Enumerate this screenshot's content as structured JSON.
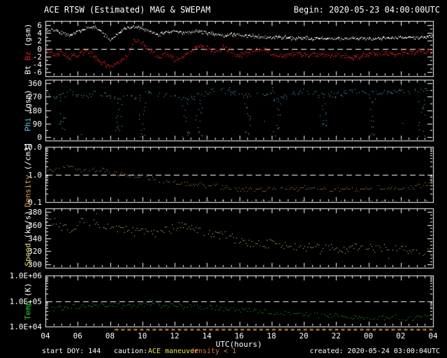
{
  "header": {
    "title": "ACE RTSW (Estimated) MAG & SWEPAM",
    "begin": "Begin: 2020-05-23 04:00:00UTC"
  },
  "footer": {
    "start_doy": "start DOY: 144",
    "caution_label": "caution:",
    "maneuver": "ACE maneuver",
    "maneuver_color": "#e8e34a",
    "density_caution": "density < 1",
    "density_caution_color": "#e0763a",
    "created": "created: 2020-05-24 03:00:04UTC"
  },
  "x_axis": {
    "label": "UTC(hours)",
    "hour_labels": [
      "04",
      "06",
      "08",
      "10",
      "12",
      "14",
      "16",
      "18",
      "20",
      "22",
      "00",
      "02",
      "04"
    ]
  },
  "caution_line": {
    "color": "#dd9b55",
    "segments": [
      [
        8.3,
        28
      ]
    ]
  },
  "chart_data": {
    "type": "scatter",
    "title": "ACE RTSW (Estimated) MAG & SWEPAM",
    "xlabel": "UTC(hours)",
    "x_range_hours": [
      4,
      28
    ],
    "x_hours": [
      4,
      4.5,
      5,
      5.5,
      6,
      6.5,
      7,
      7.5,
      8,
      8.5,
      9,
      9.5,
      10,
      10.5,
      11,
      11.5,
      12,
      12.5,
      13,
      13.5,
      14,
      14.5,
      15,
      15.5,
      16,
      16.5,
      17,
      17.5,
      18,
      18.5,
      19,
      19.5,
      20,
      20.5,
      21,
      21.5,
      22,
      22.5,
      23,
      23.5,
      24,
      24.5,
      25,
      25.5,
      26,
      26.5,
      27,
      27.5,
      28
    ],
    "panels": [
      {
        "name": "bt-bz",
        "label_parts": [
          {
            "text": "Bt ",
            "color": "#ffffff"
          },
          {
            "text": "Bz",
            "color": "#dd2222"
          },
          {
            "text": " (gsm)",
            "color": "#ffffff"
          }
        ],
        "scale": "linear",
        "ylim": [
          -7,
          7
        ],
        "ticks": [
          {
            "value": 6,
            "label": "6"
          },
          {
            "value": 4,
            "label": "4"
          },
          {
            "value": 2,
            "label": "2"
          },
          {
            "value": 0,
            "label": "0"
          },
          {
            "value": -2,
            "label": "-2"
          },
          {
            "value": -4,
            "label": "-4"
          },
          {
            "value": -6,
            "label": "-6"
          }
        ],
        "minor_step": 1,
        "ref_line": 0,
        "series": [
          {
            "name": "bt",
            "color": "#ffffff",
            "values": [
              4.6,
              4.8,
              4.1,
              3.4,
              4.5,
              5.3,
              5.5,
              4.2,
              2.3,
              4.0,
              5.3,
              5.6,
              5.0,
              4.4,
              3.5,
              4.3,
              4.5,
              4.0,
              4.2,
              4.4,
              4.0,
              3.6,
              3.3,
              3.7,
              3.5,
              3.2,
              3.1,
              3.0,
              2.9,
              3.0,
              2.8,
              2.7,
              2.8,
              2.6,
              2.7,
              2.6,
              2.5,
              2.6,
              2.7,
              2.6,
              2.5,
              2.6,
              2.7,
              2.8,
              2.9,
              2.8,
              2.9,
              3.0,
              3.1
            ]
          },
          {
            "name": "bz",
            "color": "#dd2222",
            "values": [
              -0.3,
              -1.5,
              -0.8,
              -2.5,
              -1.5,
              -0.5,
              -2.0,
              -3.5,
              -4.8,
              -3.6,
              -1.8,
              2.4,
              1.6,
              -0.6,
              -2.2,
              -1.0,
              -2.8,
              -2.0,
              -0.4,
              0.5,
              0.2,
              -0.6,
              0.4,
              -0.8,
              -1.8,
              -1.0,
              -0.3,
              0.2,
              -1.2,
              -1.8,
              -1.5,
              -1.2,
              -1.4,
              -1.5,
              -1.3,
              -1.6,
              -1.4,
              -2.0,
              -2.2,
              -1.8,
              -1.5,
              -1.2,
              -1.0,
              -1.3,
              -1.1,
              -0.9,
              -0.8,
              -0.7,
              -0.6
            ]
          }
        ]
      },
      {
        "name": "phi",
        "label_parts": [
          {
            "text": "Phi",
            "color": "#62c3e6"
          },
          {
            "text": " (gsm)",
            "color": "#ffffff"
          }
        ],
        "scale": "linear",
        "ylim": [
          -25,
          385
        ],
        "ticks": [
          {
            "value": 360,
            "label": "360"
          },
          {
            "value": 270,
            "label": "270"
          },
          {
            "value": 180,
            "label": "180"
          },
          {
            "value": 90,
            "label": "90"
          },
          {
            "value": 0,
            "label": "0"
          }
        ],
        "minor_step": 45,
        "series": [
          {
            "name": "phi",
            "color": "#62c3e6",
            "values": [
              295,
              270,
              300,
              310,
              280,
              260,
              300,
              290,
              270,
              255,
              285,
              265,
              305,
              295,
              280,
              285,
              265,
              250,
              265,
              280,
              300,
              320,
              310,
              300,
              290,
              275,
              285,
              295,
              305,
              260,
              290,
              300,
              310,
              305,
              295,
              290,
              285,
              295,
              305,
              315,
              300,
              295,
              300,
              305,
              310,
              300,
              310,
              325,
              335
            ],
            "low_excursion_hours": [
              5.0,
              8.5,
              10.0,
              12.7,
              13.5,
              16.5,
              18.3,
              21.2,
              24.2,
              27.3
            ]
          }
        ]
      },
      {
        "name": "density",
        "label_parts": [
          {
            "text": "Density",
            "color": "#dfa566"
          },
          {
            "text": " (/cm3)",
            "color": "#ffffff"
          }
        ],
        "scale": "log",
        "ylim": [
          0.1,
          10
        ],
        "ticks": [
          {
            "value": 10,
            "label": "10.0"
          },
          {
            "value": 1,
            "label": "1.0"
          },
          {
            "value": 0.1,
            "label": "0.1"
          }
        ],
        "ref_line": 1,
        "series": [
          {
            "name": "density",
            "color": "#dfa566",
            "values": [
              1.3,
              1.5,
              2.2,
              1.9,
              1.5,
              1.4,
              1.5,
              1.6,
              1.3,
              1.1,
              0.95,
              0.9,
              0.8,
              0.7,
              0.6,
              0.55,
              0.5,
              0.48,
              0.45,
              0.42,
              0.4,
              0.38,
              0.35,
              0.33,
              0.3,
              0.3,
              0.28,
              0.3,
              0.32,
              0.3,
              0.28,
              0.3,
              0.32,
              0.35,
              0.3,
              0.28,
              0.3,
              0.32,
              0.3,
              0.28,
              0.3,
              0.33,
              0.35,
              0.32,
              0.3,
              0.35,
              0.4,
              0.45,
              0.5
            ]
          }
        ]
      },
      {
        "name": "speed",
        "label_parts": [
          {
            "text": "Speed",
            "color": "#e8e380"
          },
          {
            "text": " (km/s)",
            "color": "#ffffff"
          }
        ],
        "scale": "linear",
        "ylim": [
          295,
          385
        ],
        "ticks": [
          {
            "value": 380,
            "label": "380"
          },
          {
            "value": 360,
            "label": "360"
          },
          {
            "value": 340,
            "label": "340"
          },
          {
            "value": 320,
            "label": "320"
          },
          {
            "value": 300,
            "label": "300"
          }
        ],
        "minor_step": 5,
        "series": [
          {
            "name": "speed",
            "color": "#efeb9a",
            "values": [
              368,
              365,
              358,
              352,
              362,
              366,
              363,
              360,
              356,
              352,
              354,
              350,
              352,
              350,
              348,
              352,
              356,
              360,
              358,
              354,
              349,
              344,
              347,
              341,
              337,
              334,
              331,
              330,
              333,
              330,
              327,
              329,
              325,
              327,
              324,
              326,
              325,
              323,
              327,
              329,
              327,
              325,
              326,
              327,
              325,
              323,
              321,
              319,
              318
            ]
          }
        ]
      },
      {
        "name": "temp",
        "label_parts": [
          {
            "text": "Temp",
            "color": "#2ecc40"
          },
          {
            "text": " (K)",
            "color": "#ffffff"
          }
        ],
        "scale": "log",
        "ylim": [
          10000,
          1000000
        ],
        "ticks": [
          {
            "value": 1000000,
            "label": "1.0E+06"
          },
          {
            "value": 100000,
            "label": "1.0E+05"
          },
          {
            "value": 10000,
            "label": "1.0E+04"
          }
        ],
        "ref_line": 100000,
        "series": [
          {
            "name": "temp",
            "color": "#2ecc40",
            "values": [
              45000,
              50000,
              55000,
              60000,
              62000,
              65000,
              68000,
              70000,
              70000,
              68000,
              70000,
              68000,
              70000,
              72000,
              68000,
              65000,
              68000,
              65000,
              62000,
              60000,
              58000,
              55000,
              52000,
              50000,
              48000,
              45000,
              42000,
              40000,
              38000,
              35000,
              32000,
              30000,
              32000,
              29000,
              27000,
              26000,
              28000,
              25000,
              23000,
              22000,
              21000,
              23000,
              22000,
              24000,
              22000,
              21000,
              23000,
              25000,
              27000
            ]
          }
        ]
      }
    ]
  }
}
